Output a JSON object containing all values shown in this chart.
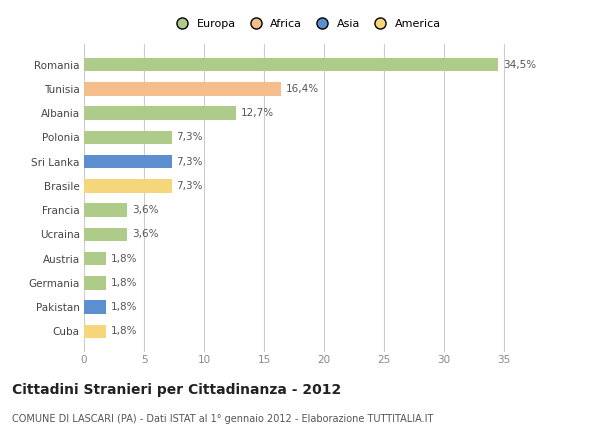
{
  "countries": [
    "Romania",
    "Tunisia",
    "Albania",
    "Polonia",
    "Sri Lanka",
    "Brasile",
    "Francia",
    "Ucraina",
    "Austria",
    "Germania",
    "Pakistan",
    "Cuba"
  ],
  "values": [
    34.5,
    16.4,
    12.7,
    7.3,
    7.3,
    7.3,
    3.6,
    3.6,
    1.8,
    1.8,
    1.8,
    1.8
  ],
  "labels": [
    "34,5%",
    "16,4%",
    "12,7%",
    "7,3%",
    "7,3%",
    "7,3%",
    "3,6%",
    "3,6%",
    "1,8%",
    "1,8%",
    "1,8%",
    "1,8%"
  ],
  "continents": [
    "Europa",
    "Africa",
    "Europa",
    "Europa",
    "Asia",
    "America",
    "Europa",
    "Europa",
    "Europa",
    "Europa",
    "Asia",
    "America"
  ],
  "colors": {
    "Europa": "#aecb8a",
    "Africa": "#f5bc8c",
    "Asia": "#5b8fcf",
    "America": "#f5d67a"
  },
  "legend_order": [
    "Europa",
    "Africa",
    "Asia",
    "America"
  ],
  "xlim": [
    0,
    37
  ],
  "xticks": [
    0,
    5,
    10,
    15,
    20,
    25,
    30,
    35
  ],
  "title": "Cittadini Stranieri per Cittadinanza - 2012",
  "subtitle": "COMUNE DI LASCARI (PA) - Dati ISTAT al 1° gennaio 2012 - Elaborazione TUTTITALIA.IT",
  "background_color": "#ffffff",
  "bar_height": 0.55,
  "label_fontsize": 7.5,
  "tick_fontsize": 7.5,
  "legend_fontsize": 8,
  "title_fontsize": 10,
  "subtitle_fontsize": 7
}
